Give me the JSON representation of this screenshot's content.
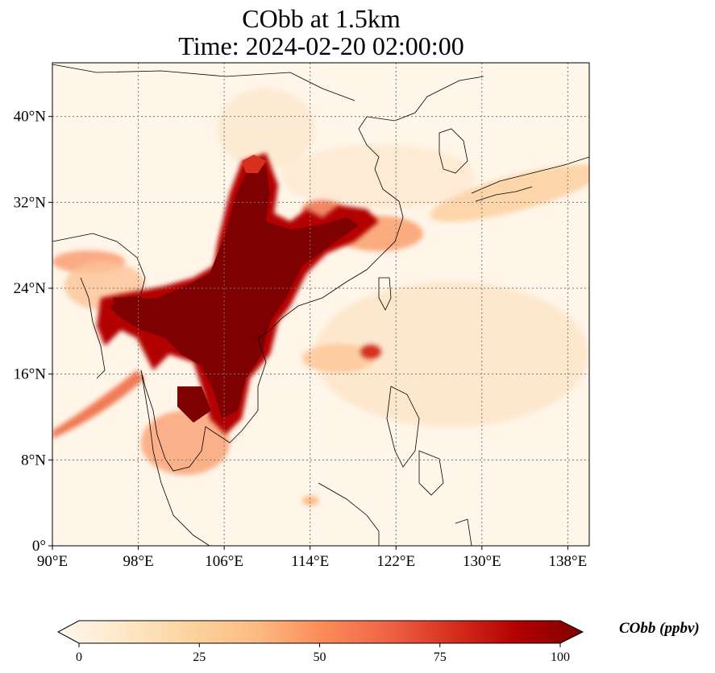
{
  "title": {
    "line1": "CObb at 1.5km",
    "line2": "Time: 2024-02-20 02:00:00"
  },
  "map": {
    "lon_range": [
      90,
      140
    ],
    "lat_range": [
      0,
      45
    ],
    "lon_ticks": [
      {
        "value": 90,
        "label": "90°E"
      },
      {
        "value": 98,
        "label": "98°E"
      },
      {
        "value": 106,
        "label": "106°E"
      },
      {
        "value": 114,
        "label": "114°E"
      },
      {
        "value": 122,
        "label": "122°E"
      },
      {
        "value": 130,
        "label": "130°E"
      },
      {
        "value": 138,
        "label": "138°E"
      }
    ],
    "lat_ticks": [
      {
        "value": 0,
        "label": "0°"
      },
      {
        "value": 8,
        "label": "8°N"
      },
      {
        "value": 16,
        "label": "16°N"
      },
      {
        "value": 24,
        "label": "24°N"
      },
      {
        "value": 32,
        "label": "32°N"
      },
      {
        "value": 40,
        "label": "40°N"
      }
    ],
    "gridlines": true,
    "colormap": "OrRd",
    "background_color": "#fff5e8"
  },
  "colorbar": {
    "label": "CObb (ppbv)",
    "min": 0,
    "max": 100,
    "extend": "both",
    "ticks": [
      {
        "value": 0,
        "label": "0"
      },
      {
        "value": 25,
        "label": "25"
      },
      {
        "value": 50,
        "label": "50"
      },
      {
        "value": 75,
        "label": "75"
      },
      {
        "value": 100,
        "label": "100"
      }
    ],
    "colors": [
      "#fff7ec",
      "#fee8c8",
      "#fdd49e",
      "#fdbb84",
      "#fc8d59",
      "#ef6548",
      "#d7301f",
      "#b30000",
      "#7f0000"
    ]
  }
}
